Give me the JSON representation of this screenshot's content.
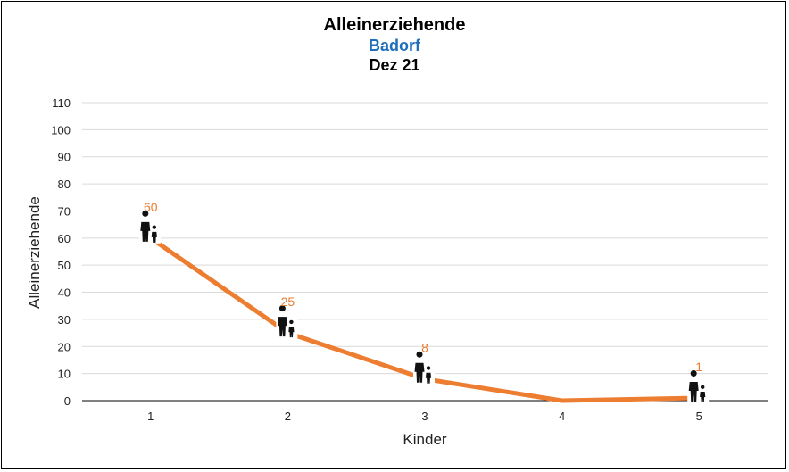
{
  "chart_data": {
    "type": "line",
    "title": "Alleinerziehende",
    "subtitle": "Badorf",
    "subtitle_color": "#1f6fba",
    "subtitle2": "Dez 21",
    "xlabel": "Kinder",
    "ylabel": "Alleinerziehende",
    "categories": [
      "1",
      "2",
      "3",
      "4",
      "5"
    ],
    "series": [
      {
        "values": [
          60,
          25,
          8,
          0,
          1
        ],
        "color": "#ed7d31",
        "data_labels": [
          "60",
          "25",
          "8",
          "",
          "1"
        ]
      }
    ],
    "ylim": [
      0,
      110
    ],
    "yticks": [
      0,
      10,
      20,
      30,
      40,
      50,
      60,
      70,
      80,
      90,
      100,
      110
    ],
    "grid": true,
    "marker": "parent-child-icon"
  }
}
